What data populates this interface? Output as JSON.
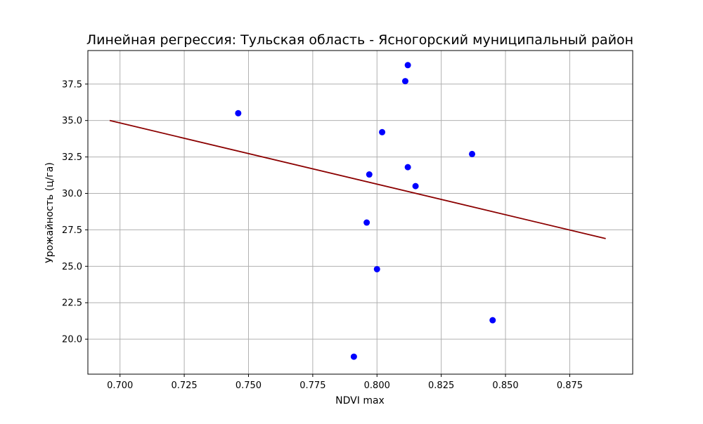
{
  "chart_data": {
    "type": "scatter",
    "title": "Линейная регрессия: Тульская область - Ясногорский муниципальный район",
    "xlabel": "NDVI max",
    "ylabel": "Урожайность (ц/га)",
    "xlim": [
      0.6875,
      0.8995
    ],
    "ylim": [
      17.6,
      39.8
    ],
    "x_ticks": [
      0.7,
      0.725,
      0.75,
      0.775,
      0.8,
      0.825,
      0.85,
      0.875
    ],
    "x_tick_labels": [
      "0.700",
      "0.725",
      "0.750",
      "0.775",
      "0.800",
      "0.825",
      "0.850",
      "0.875"
    ],
    "y_ticks": [
      20.0,
      22.5,
      25.0,
      27.5,
      30.0,
      32.5,
      35.0,
      37.5
    ],
    "y_tick_labels": [
      "20.0",
      "22.5",
      "25.0",
      "27.5",
      "30.0",
      "32.5",
      "35.0",
      "37.5"
    ],
    "grid": true,
    "series": [
      {
        "kind": "points",
        "color": "#0000ff",
        "points": [
          {
            "x": 0.746,
            "y": 35.5
          },
          {
            "x": 0.791,
            "y": 18.8
          },
          {
            "x": 0.796,
            "y": 28.0
          },
          {
            "x": 0.797,
            "y": 31.3
          },
          {
            "x": 0.8,
            "y": 24.8
          },
          {
            "x": 0.802,
            "y": 34.2
          },
          {
            "x": 0.811,
            "y": 37.7
          },
          {
            "x": 0.812,
            "y": 38.8
          },
          {
            "x": 0.812,
            "y": 31.8
          },
          {
            "x": 0.815,
            "y": 30.5
          },
          {
            "x": 0.837,
            "y": 32.7
          },
          {
            "x": 0.845,
            "y": 21.3
          }
        ]
      },
      {
        "kind": "line",
        "color": "#8b0000",
        "points": [
          {
            "x": 0.696,
            "y": 35.0
          },
          {
            "x": 0.889,
            "y": 26.9
          }
        ]
      }
    ]
  }
}
